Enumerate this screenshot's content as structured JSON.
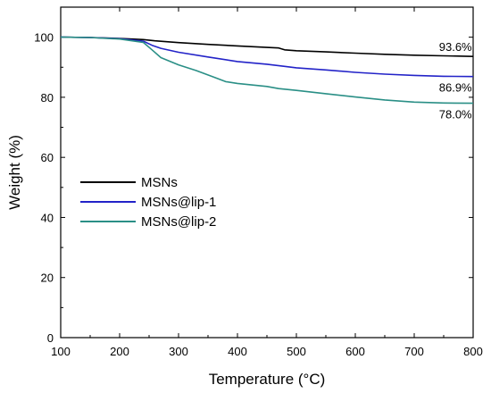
{
  "chart_data": {
    "type": "line",
    "xlabel": "Temperature (°C)",
    "ylabel": "Weight (%)",
    "xlim": [
      100,
      800
    ],
    "ylim": [
      0,
      110
    ],
    "xticks": [
      100,
      200,
      300,
      400,
      500,
      600,
      700,
      800
    ],
    "yticks": [
      0,
      20,
      40,
      60,
      80,
      100
    ],
    "grid": false,
    "legend_position": "center-left",
    "series": [
      {
        "name": "MSNs",
        "color": "#000000",
        "x": [
          100,
          150,
          200,
          240,
          260,
          300,
          350,
          400,
          450,
          470,
          480,
          500,
          550,
          600,
          650,
          700,
          750,
          800
        ],
        "y": [
          100,
          99.9,
          99.6,
          99.2,
          98.8,
          98.2,
          97.6,
          97.1,
          96.6,
          96.4,
          95.8,
          95.5,
          95.1,
          94.7,
          94.3,
          94.0,
          93.8,
          93.6
        ]
      },
      {
        "name": "MSNs@lip-1",
        "color": "#2323c8",
        "x": [
          100,
          150,
          200,
          240,
          255,
          270,
          300,
          350,
          400,
          450,
          480,
          500,
          550,
          600,
          650,
          700,
          750,
          800
        ],
        "y": [
          100,
          99.9,
          99.5,
          98.7,
          97.3,
          96.3,
          95.0,
          93.4,
          91.9,
          91.0,
          90.3,
          89.8,
          89.1,
          88.3,
          87.7,
          87.3,
          87.0,
          86.9
        ]
      },
      {
        "name": "MSNs@lip-2",
        "color": "#2a8f86",
        "x": [
          100,
          150,
          200,
          240,
          255,
          270,
          300,
          330,
          360,
          380,
          400,
          450,
          470,
          500,
          550,
          600,
          650,
          700,
          750,
          800
        ],
        "y": [
          100,
          99.9,
          99.4,
          98.3,
          95.8,
          93.2,
          90.8,
          88.9,
          86.7,
          85.2,
          84.6,
          83.6,
          82.9,
          82.3,
          81.2,
          80.1,
          79.1,
          78.4,
          78.1,
          78.0
        ]
      }
    ],
    "annotations": [
      {
        "text": "93.6%",
        "x": 770,
        "y": 93.6,
        "placement": "above"
      },
      {
        "text": "86.9%",
        "x": 770,
        "y": 86.9,
        "placement": "below"
      },
      {
        "text": "78.0%",
        "x": 770,
        "y": 78.0,
        "placement": "below"
      }
    ]
  }
}
